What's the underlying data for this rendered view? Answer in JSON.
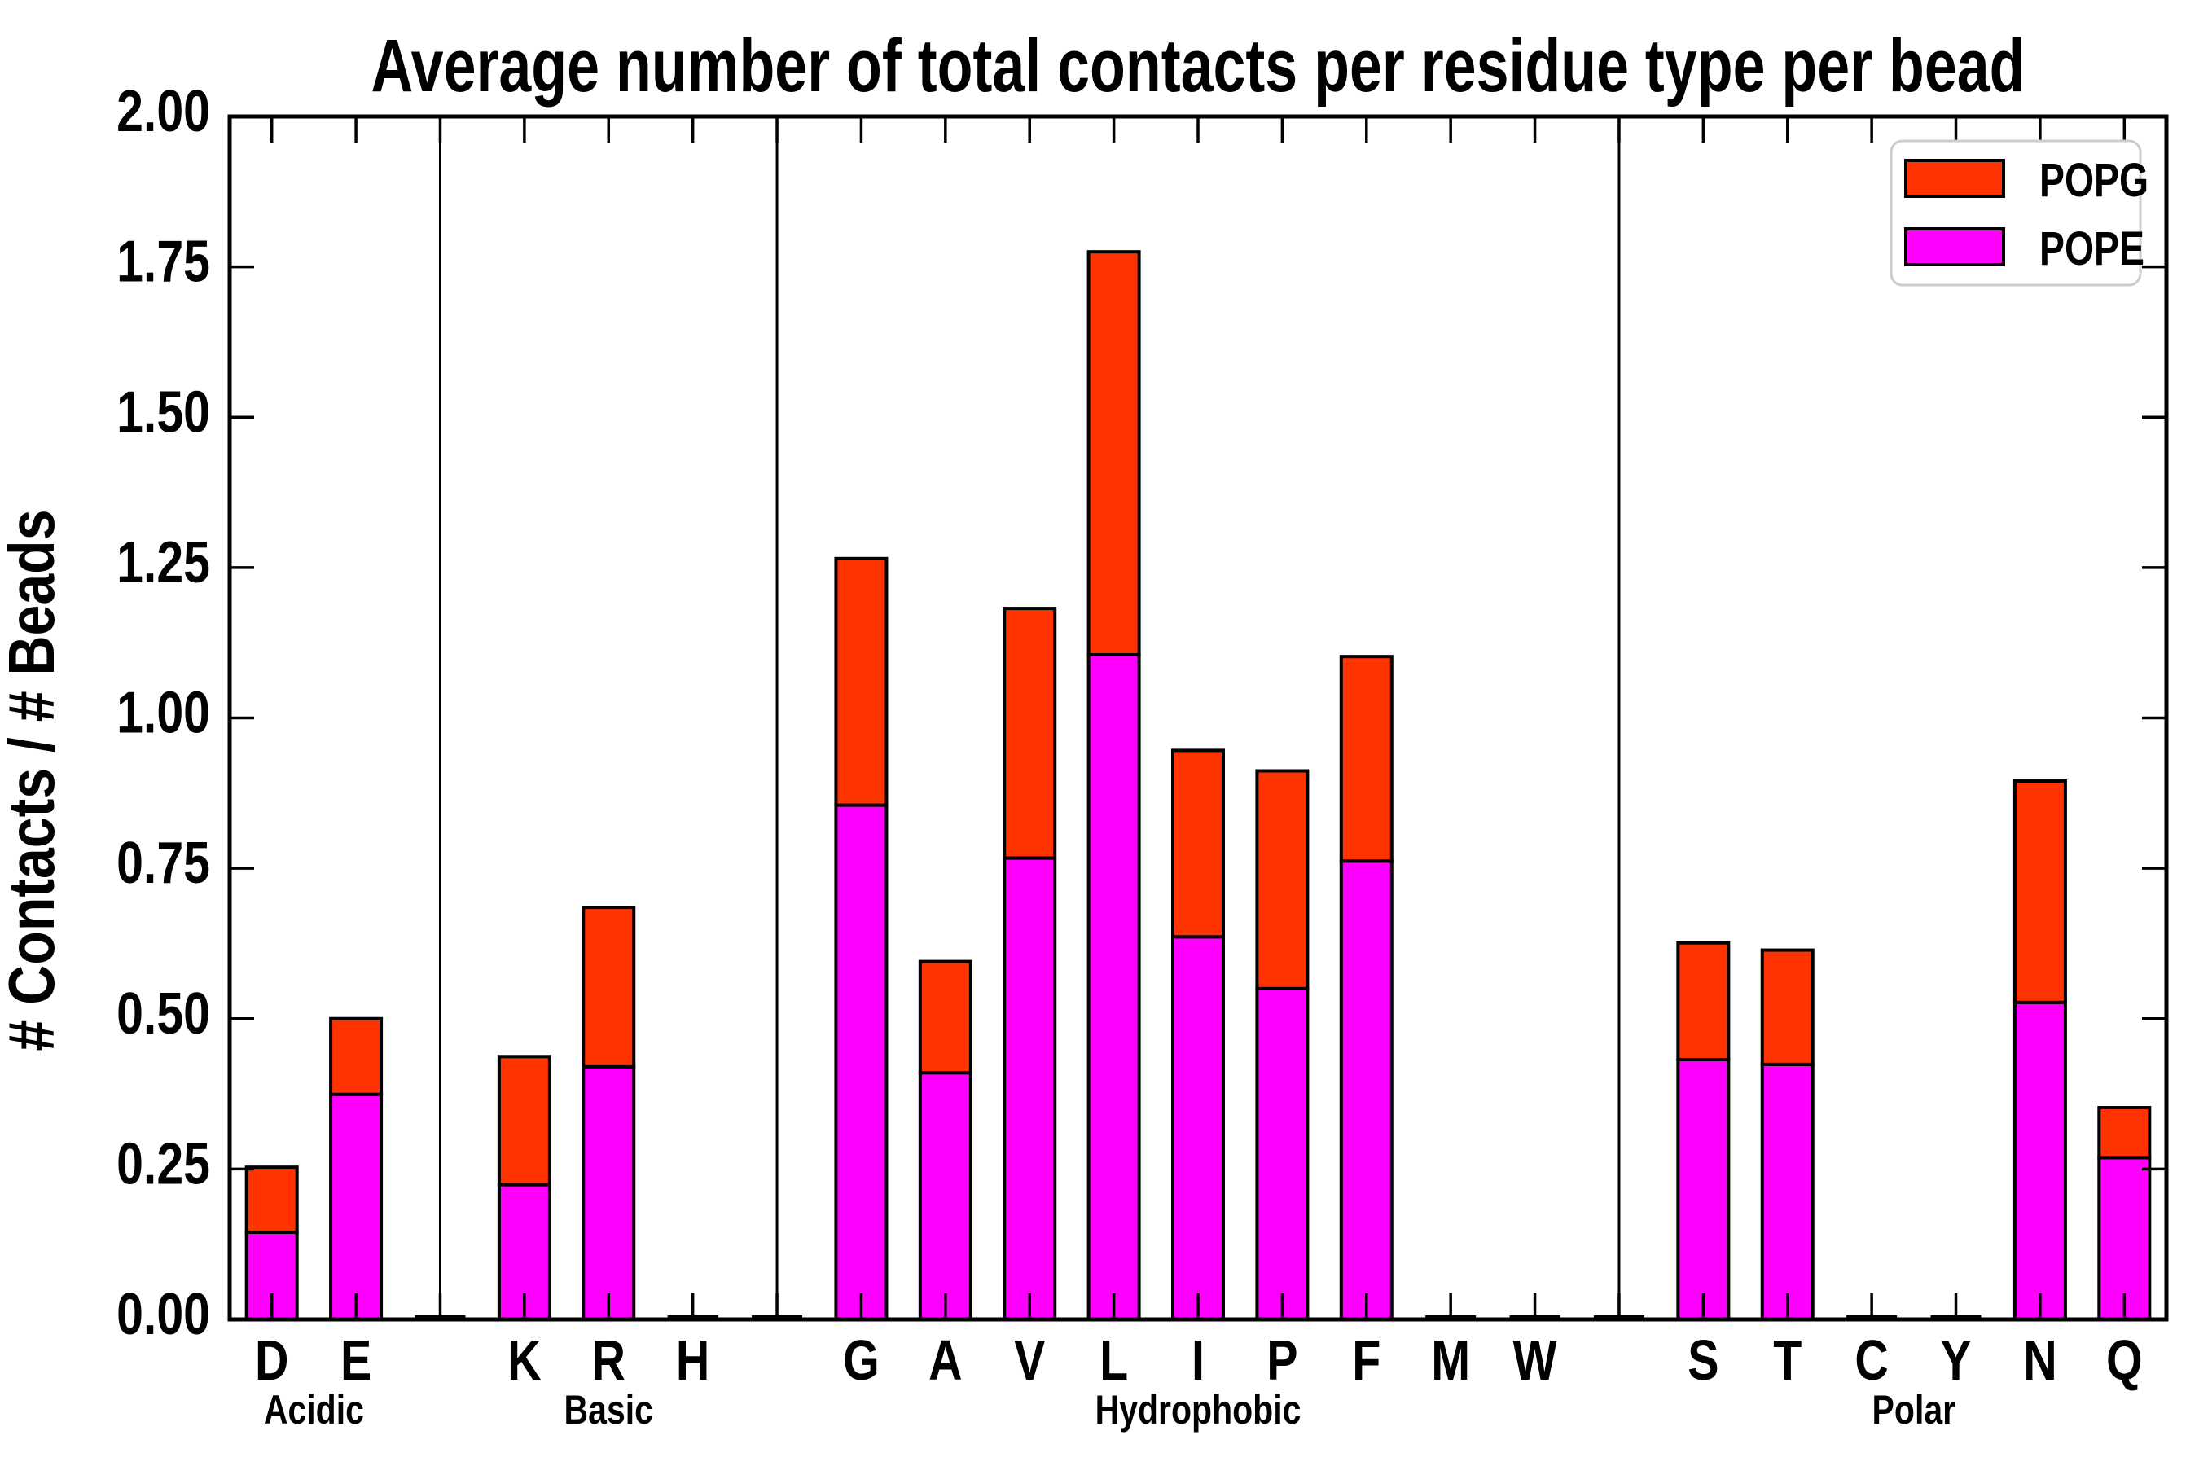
{
  "title": "Average number of total contacts per residue type per bead",
  "y_axis": {
    "label": "# Contacts / # Beads",
    "tick_labels": [
      "0.00",
      "0.25",
      "0.50",
      "0.75",
      "1.00",
      "1.25",
      "1.50",
      "1.75",
      "2.00"
    ]
  },
  "x_axis": {
    "groups": [
      {
        "label": "Acidic",
        "residues": [
          "D",
          "E"
        ]
      },
      {
        "label": "Basic",
        "residues": [
          "K",
          "R",
          "H"
        ]
      },
      {
        "label": "Hydrophobic",
        "residues": [
          "G",
          "A",
          "V",
          "L",
          "I",
          "P",
          "F",
          "M",
          "W"
        ]
      },
      {
        "label": "Polar",
        "residues": [
          "S",
          "T",
          "C",
          "Y",
          "N",
          "Q"
        ]
      }
    ]
  },
  "legend": {
    "entries": [
      {
        "label": "POPG",
        "color": "#ff3300"
      },
      {
        "label": "POPE",
        "color": "#ff00ff"
      }
    ]
  },
  "colors": {
    "popg": "#ff3300",
    "pope": "#ff00ff",
    "bar_edge": "#000000",
    "axes": "#000000",
    "legend_border": "#cccccc",
    "background": "#ffffff"
  },
  "chart_data": {
    "type": "bar",
    "stacked": true,
    "title": "Average number of total contacts per residue type per bead",
    "xlabel": "",
    "ylabel": "# Contacts / # Beads",
    "ylim": [
      0,
      2.0
    ],
    "ytick_step": 0.25,
    "grid": false,
    "legend_position": "upper right",
    "categories": [
      "D",
      "E",
      "K",
      "R",
      "H",
      "G",
      "A",
      "V",
      "L",
      "I",
      "P",
      "F",
      "M",
      "W",
      "S",
      "T",
      "C",
      "Y",
      "N",
      "Q"
    ],
    "category_groups": [
      "Acidic",
      "Acidic",
      "Basic",
      "Basic",
      "Basic",
      "Hydrophobic",
      "Hydrophobic",
      "Hydrophobic",
      "Hydrophobic",
      "Hydrophobic",
      "Hydrophobic",
      "Hydrophobic",
      "Hydrophobic",
      "Hydrophobic",
      "Polar",
      "Polar",
      "Polar",
      "Polar",
      "Polar",
      "Polar"
    ],
    "series": [
      {
        "name": "POPE",
        "color": "#ff00ff",
        "values": [
          0.145,
          0.374,
          0.224,
          0.42,
          0.0,
          0.855,
          0.41,
          0.767,
          1.105,
          0.636,
          0.55,
          0.762,
          0.0,
          0.0,
          0.432,
          0.424,
          0.0,
          0.0,
          0.527,
          0.269
        ]
      },
      {
        "name": "POPG",
        "color": "#ff3300",
        "values": [
          0.108,
          0.126,
          0.213,
          0.265,
          0.0,
          0.41,
          0.185,
          0.415,
          0.67,
          0.31,
          0.362,
          0.34,
          0.0,
          0.0,
          0.194,
          0.19,
          0.0,
          0.0,
          0.368,
          0.083
        ]
      }
    ],
    "totals": [
      0.253,
      0.5,
      0.437,
      0.685,
      0.0,
      1.265,
      0.595,
      1.182,
      1.775,
      0.946,
      0.912,
      1.102,
      0.0,
      0.0,
      0.626,
      0.614,
      0.0,
      0.0,
      0.895,
      0.352
    ]
  }
}
